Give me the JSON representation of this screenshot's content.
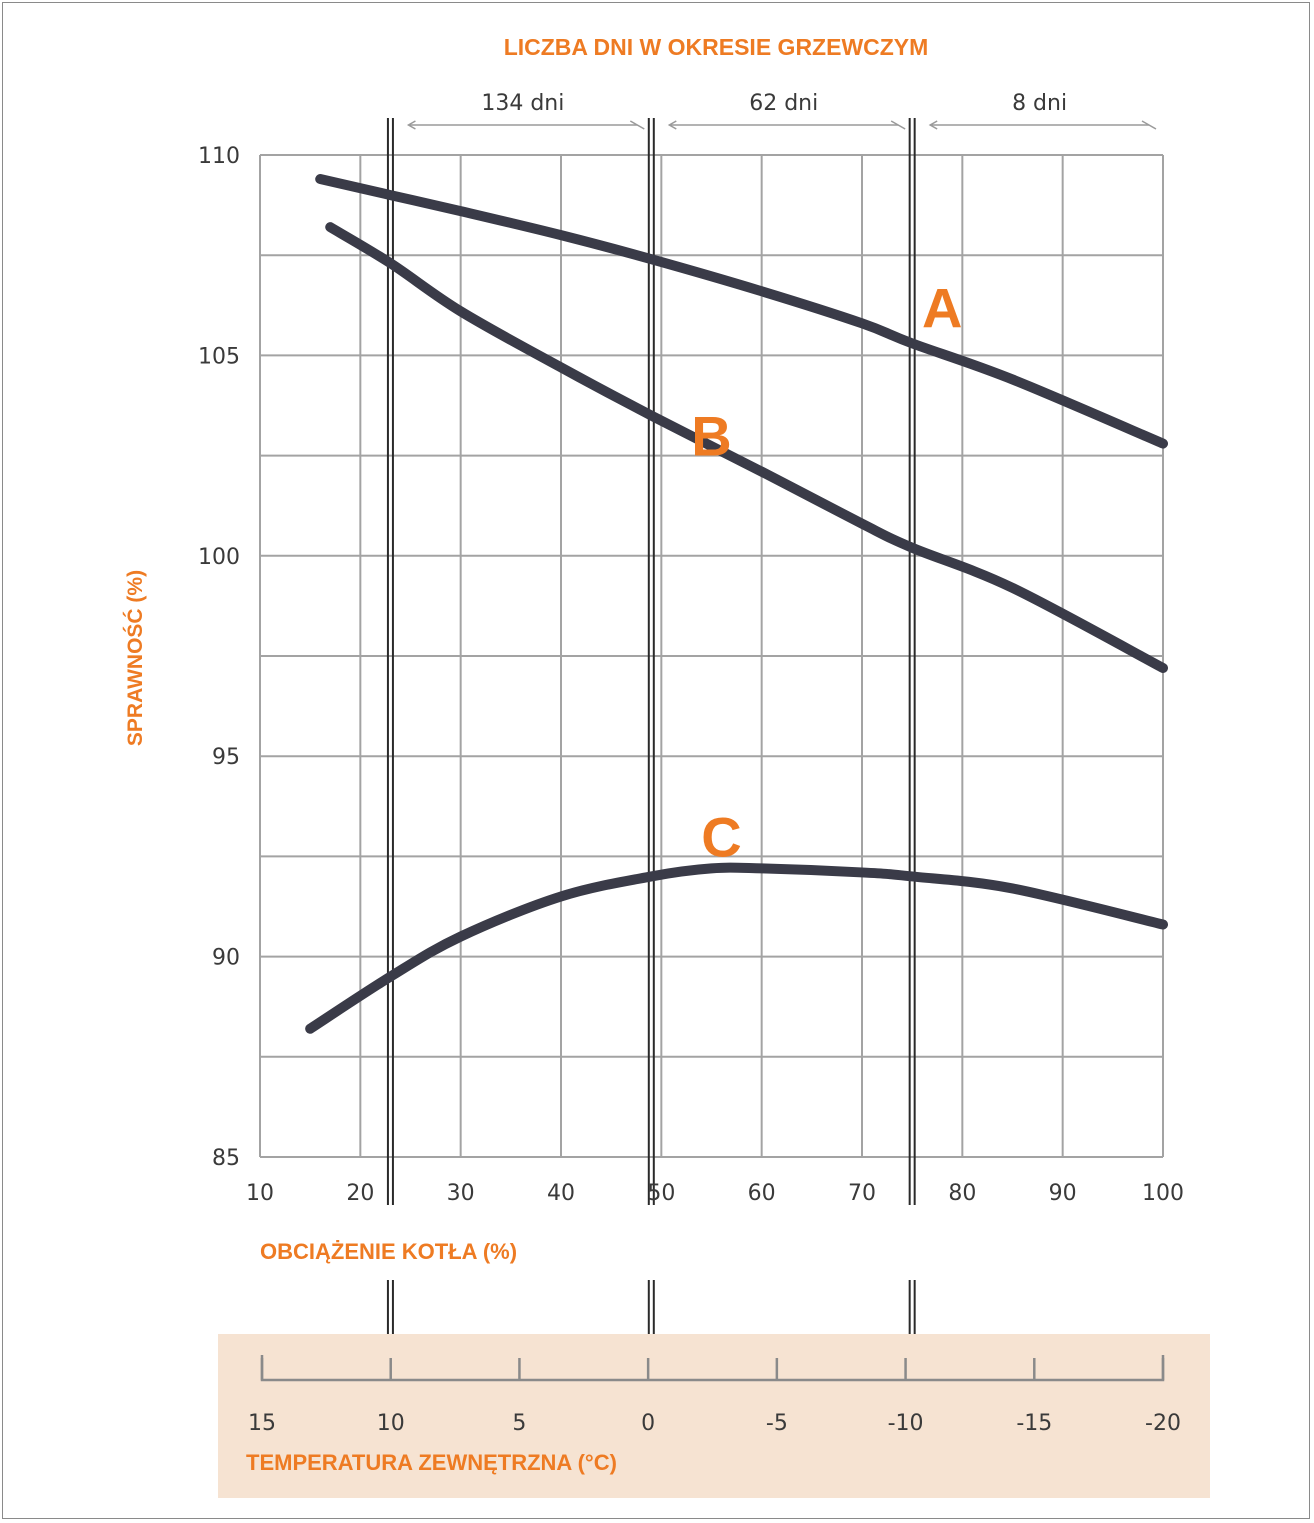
{
  "chart_data": {
    "type": "line",
    "title": "LICZBA DNI W OKRESIE GRZEWCZYM",
    "xlabel": "OBCIĄŻENIE KOTŁA (%)",
    "ylabel": "SPRAWNOŚĆ (%)",
    "xlim": [
      10,
      100
    ],
    "ylim": [
      85,
      110
    ],
    "x_ticks": [
      "10",
      "20",
      "30",
      "40",
      "50",
      "60",
      "70",
      "80",
      "90",
      "100"
    ],
    "y_ticks": [
      "85",
      "90",
      "95",
      "100",
      "105",
      "110"
    ],
    "grid": true,
    "series": [
      {
        "name": "A",
        "x": [
          16,
          23,
          30,
          40,
          49,
          60,
          70,
          75,
          85,
          100
        ],
        "y": [
          109.4,
          109.0,
          108.6,
          108.0,
          107.4,
          106.6,
          105.8,
          105.3,
          104.4,
          102.8
        ]
      },
      {
        "name": "B",
        "x": [
          17,
          23,
          30,
          40,
          49,
          60,
          70,
          75,
          85,
          100
        ],
        "y": [
          108.2,
          107.3,
          106.1,
          104.7,
          103.5,
          102.1,
          100.8,
          100.2,
          99.2,
          97.2
        ]
      },
      {
        "name": "C",
        "x": [
          15,
          23,
          30,
          40,
          49,
          55,
          60,
          70,
          75,
          85,
          100
        ],
        "y": [
          88.2,
          89.5,
          90.5,
          91.5,
          92.0,
          92.2,
          92.2,
          92.1,
          92.0,
          91.7,
          90.8
        ]
      }
    ],
    "periods": [
      {
        "label": "134 dni",
        "x_from": 23,
        "x_to": 49
      },
      {
        "label": "62 dni",
        "x_from": 49,
        "x_to": 75
      },
      {
        "label": "8 dni",
        "x_from": 75,
        "x_to": 100
      }
    ],
    "dividers_x": [
      23,
      49,
      75
    ],
    "temperature_axis": {
      "label": "TEMPERATURA ZEWNĘTRZNA (°C)",
      "ticks": [
        "15",
        "10",
        "5",
        "0",
        "-5",
        "-10",
        "-15",
        "-20"
      ]
    },
    "colors": {
      "curve": "#3a3b48",
      "accent": "#ee7b23",
      "band": "#f6e3d2",
      "grid": "#a3a3a3"
    }
  }
}
